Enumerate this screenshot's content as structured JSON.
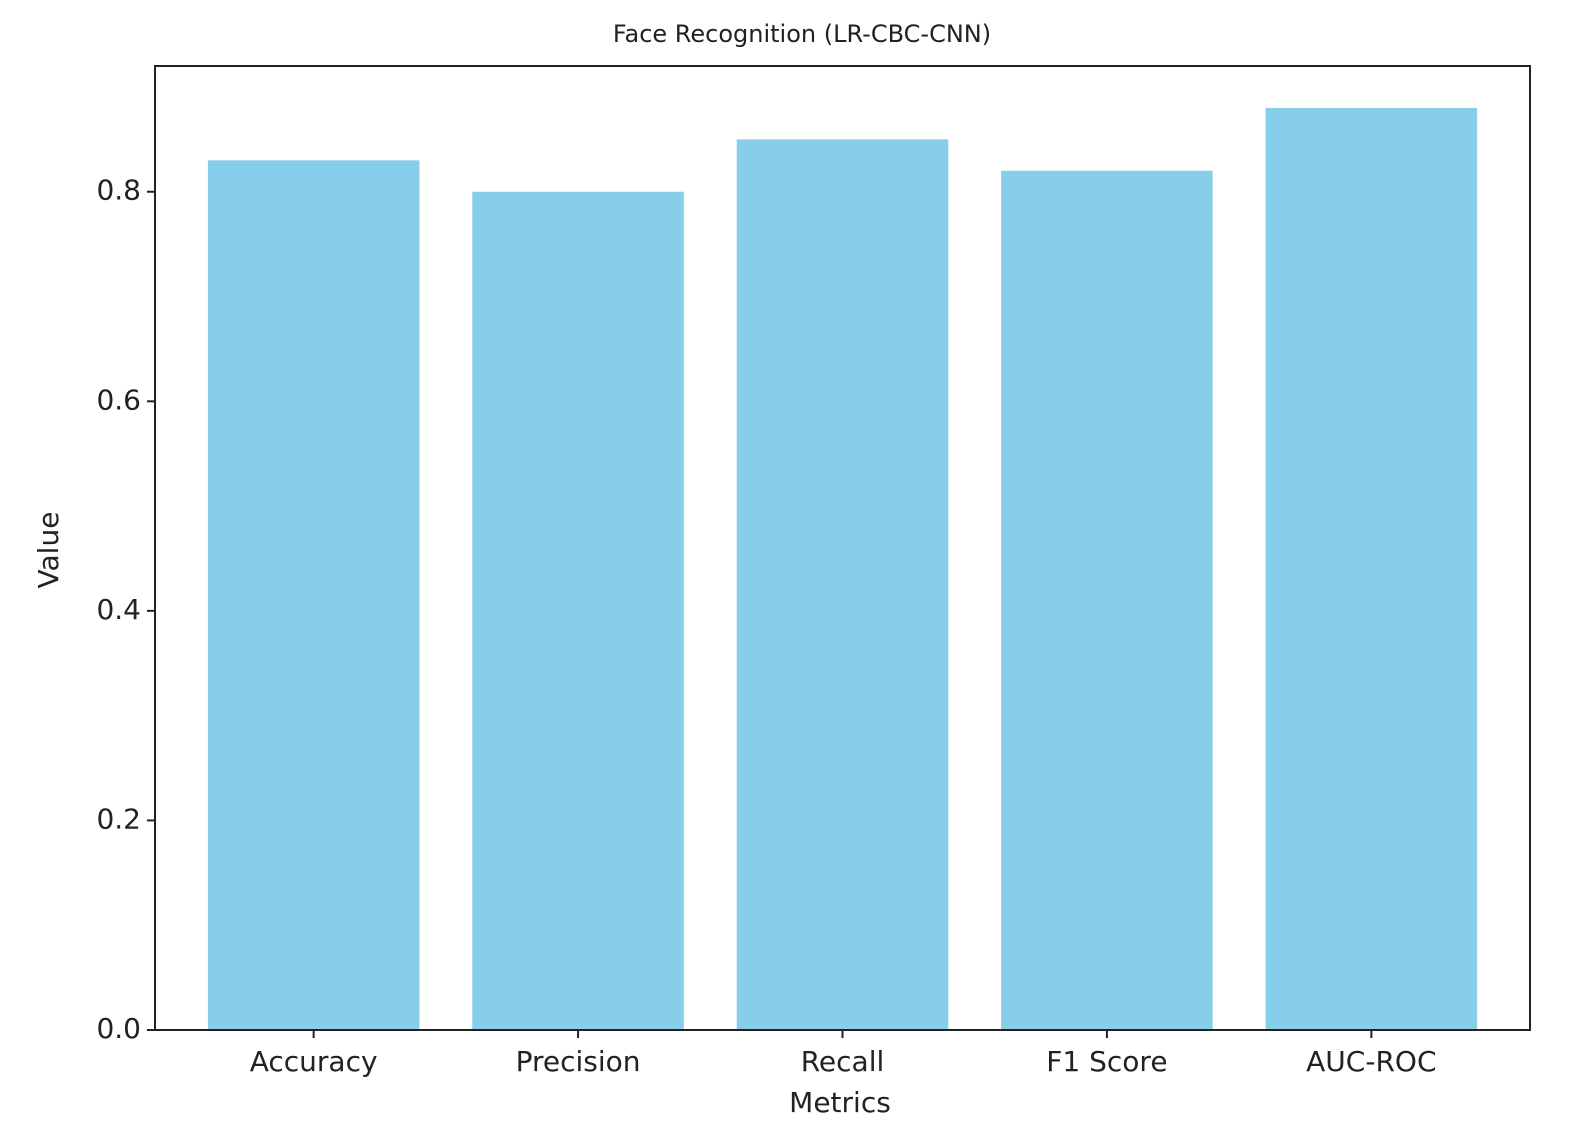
{
  "chart_data": {
    "type": "bar",
    "title": "Face Recognition (LR-CBC-CNN)",
    "x_label": "Metrics",
    "y_label": "Value",
    "categories": [
      "Accuracy",
      "Precision",
      "Recall",
      "F1 Score",
      "AUC-ROC"
    ],
    "values": [
      0.83,
      0.8,
      0.85,
      0.82,
      0.88
    ],
    "color": "#87ceeb",
    "ylim": [
      0,
      0.92
    ],
    "yticks": [
      {
        "value": 0,
        "label": "0.0"
      },
      0.2,
      0.4,
      0.6,
      0.8
    ],
    "grid": false
  }
}
